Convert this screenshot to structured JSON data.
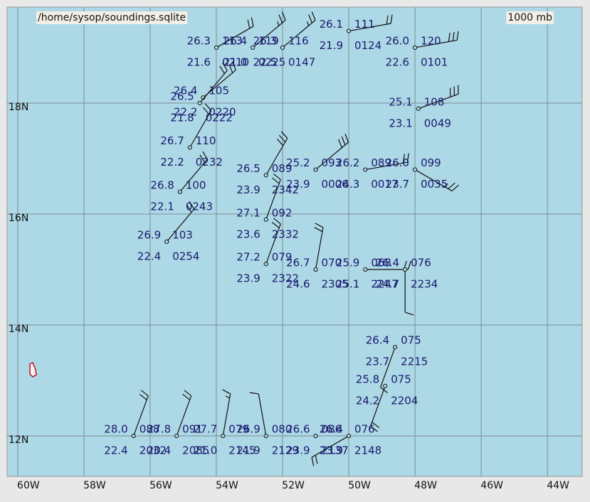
{
  "map": {
    "title": "/home/sysop/soundings.sqlite",
    "level": "1000 mb",
    "xlim": [
      -60.32,
      -42.95
    ],
    "ylim": [
      11.27,
      19.73
    ],
    "xticks": [
      {
        "value": -60,
        "label": "60W"
      },
      {
        "value": -58,
        "label": "58W"
      },
      {
        "value": -56,
        "label": "56W"
      },
      {
        "value": -54,
        "label": "54W"
      },
      {
        "value": -52,
        "label": "52W"
      },
      {
        "value": -50,
        "label": "50W"
      },
      {
        "value": -48,
        "label": "48W"
      },
      {
        "value": -46,
        "label": "46W"
      },
      {
        "value": -44,
        "label": "44W"
      }
    ],
    "yticks": [
      {
        "value": 12,
        "label": "12N"
      },
      {
        "value": 14,
        "label": "14N"
      },
      {
        "value": 16,
        "label": "16N"
      },
      {
        "value": 18,
        "label": "18N"
      }
    ],
    "stations": [
      {
        "lon": -54.0,
        "lat": 19.0,
        "temp": "26.3",
        "dewpoint": "21.6",
        "code": "113",
        "time": "0210",
        "wind_dir": 60,
        "wind_speed": 20
      },
      {
        "lon": -52.9,
        "lat": 19.0,
        "temp": "26.4",
        "dewpoint": "21.0",
        "code": "119",
        "time": "0225",
        "wind_dir": 50,
        "wind_speed": 25
      },
      {
        "lon": -52.0,
        "lat": 19.0,
        "temp": "26.3",
        "dewpoint": "22.5",
        "code": "116",
        "time": "0147",
        "wind_dir": 50,
        "wind_speed": 25
      },
      {
        "lon": -50.0,
        "lat": 19.3,
        "temp": "26.1",
        "dewpoint": "21.9",
        "code": "111",
        "time": "0124",
        "wind_dir": 80,
        "wind_speed": 20
      },
      {
        "lon": -48.0,
        "lat": 19.0,
        "temp": "26.0",
        "dewpoint": "22.6",
        "code": "120",
        "time": "0101",
        "wind_dir": 80,
        "wind_speed": 30
      },
      {
        "lon": -54.4,
        "lat": 18.1,
        "temp": "26.4",
        "dewpoint": "22.2",
        "code": "105",
        "time": "0220",
        "wind_dir": 50,
        "wind_speed": 20
      },
      {
        "lon": -54.5,
        "lat": 18.0,
        "temp": "26.5",
        "dewpoint": "21.8",
        "time": "0222",
        "wind_dir": 40,
        "wind_speed": 20
      },
      {
        "lon": -47.9,
        "lat": 17.9,
        "temp": "25.1",
        "dewpoint": "23.1",
        "code": "108",
        "time": "0049",
        "wind_dir": 70,
        "wind_speed": 30
      },
      {
        "lon": -54.8,
        "lat": 17.2,
        "temp": "26.7",
        "dewpoint": "22.2",
        "code": "110",
        "time": "0232",
        "wind_dir": 30,
        "wind_speed": 20
      },
      {
        "lon": -55.1,
        "lat": 16.4,
        "temp": "26.8",
        "dewpoint": "22.1",
        "code": "100",
        "time": "0243",
        "wind_dir": 40,
        "wind_speed": 20
      },
      {
        "lon": -55.5,
        "lat": 15.5,
        "temp": "26.9",
        "dewpoint": "22.4",
        "code": "103",
        "time": "0254",
        "wind_dir": 40,
        "wind_speed": 20
      },
      {
        "lon": -52.5,
        "lat": 16.7,
        "temp": "26.5",
        "dewpoint": "23.9",
        "code": "089",
        "time": "2342",
        "wind_dir": 30,
        "wind_speed": 30
      },
      {
        "lon": -51.0,
        "lat": 16.8,
        "temp": "25.2",
        "dewpoint": "23.9",
        "code": "093",
        "time": "0006",
        "wind_dir": 50,
        "wind_speed": 30
      },
      {
        "lon": -49.5,
        "lat": 16.8,
        "temp": "26.2",
        "dewpoint": "24.3",
        "code": "089",
        "time": "0017",
        "wind_dir": 80,
        "wind_speed": 20
      },
      {
        "lon": -48.0,
        "lat": 16.8,
        "temp": "26.0",
        "dewpoint": "23.7",
        "code": "099",
        "time": "0035",
        "wind_dir": 120,
        "wind_speed": 25
      },
      {
        "lon": -52.5,
        "lat": 15.9,
        "temp": "27.1",
        "dewpoint": "23.6",
        "code": "092",
        "time": "2332",
        "wind_dir": 20,
        "wind_speed": 20
      },
      {
        "lon": -52.5,
        "lat": 15.1,
        "temp": "27.2",
        "dewpoint": "23.9",
        "code": "079",
        "time": "2322",
        "wind_dir": 20,
        "wind_speed": 20
      },
      {
        "lon": -51.0,
        "lat": 15.0,
        "temp": "26.7",
        "dewpoint": "24.6",
        "code": "070",
        "time": "2305",
        "wind_dir": 10,
        "wind_speed": 20
      },
      {
        "lon": -49.5,
        "lat": 15.0,
        "temp": "25.9",
        "dewpoint": "25.1",
        "code": "068",
        "time": "2247",
        "wind_dir": 90,
        "wind_speed": 20
      },
      {
        "lon": -48.3,
        "lat": 15.0,
        "temp": "26.4",
        "dewpoint": "24.7",
        "code": "076",
        "time": "2234",
        "wind_dir": 180,
        "wind_speed": 10
      },
      {
        "lon": -48.6,
        "lat": 13.6,
        "temp": "26.4",
        "dewpoint": "23.7",
        "code": "075",
        "time": "2215",
        "wind_dir": 200,
        "wind_speed": 10
      },
      {
        "lon": -48.9,
        "lat": 12.9,
        "temp": "25.8",
        "dewpoint": "24.2",
        "code": "075",
        "time": "2204",
        "wind_dir": 200,
        "wind_speed": 20
      },
      {
        "lon": -50.0,
        "lat": 12.0,
        "temp": "26.4",
        "dewpoint": "23.9",
        "code": "076",
        "time": "2148",
        "wind_dir": 240,
        "wind_speed": 20
      },
      {
        "lon": -51.0,
        "lat": 12.0,
        "temp": "26.6",
        "dewpoint": "23.9",
        "code": "086",
        "time": "2137",
        "wind_dir": 0,
        "wind_speed": 0
      },
      {
        "lon": -52.5,
        "lat": 12.0,
        "temp": "26.9",
        "dewpoint": "21.9",
        "code": "080",
        "time": "2129",
        "wind_dir": 350,
        "wind_speed": 10
      },
      {
        "lon": -53.8,
        "lat": 12.0,
        "temp": "27.7",
        "dewpoint": "21.0",
        "code": "079",
        "time": "2145",
        "wind_dir": 10,
        "wind_speed": 15
      },
      {
        "lon": -55.2,
        "lat": 12.0,
        "temp": "27.8",
        "dewpoint": "20.4",
        "code": "091",
        "time": "2085",
        "wind_dir": 20,
        "wind_speed": 20
      },
      {
        "lon": -56.5,
        "lat": 12.0,
        "temp": "28.0",
        "dewpoint": "22.4",
        "code": "088",
        "time": "2032",
        "wind_dir": 20,
        "wind_speed": 20
      }
    ]
  }
}
